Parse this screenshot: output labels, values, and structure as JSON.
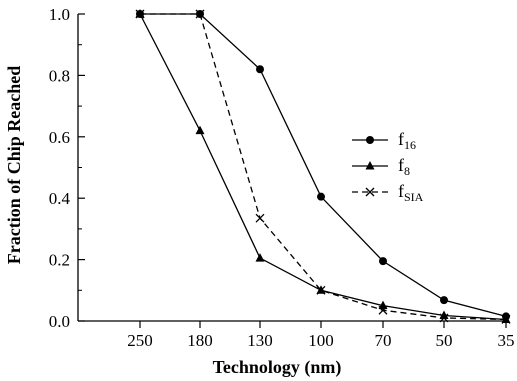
{
  "chart_data": {
    "type": "line",
    "xlabel": "Technology (nm)",
    "ylabel": "Fraction of Chip Reached",
    "categories": [
      "250",
      "180",
      "130",
      "100",
      "70",
      "50",
      "35"
    ],
    "ylim": [
      0,
      1.0
    ],
    "yticks": [
      "0.0",
      "0.2",
      "0.4",
      "0.6",
      "0.8",
      "1.0"
    ],
    "legend_position": "right",
    "grid": false,
    "series": [
      {
        "name": "f",
        "subscript": "16",
        "marker": "circle",
        "line": "solid",
        "color": "#000000",
        "values": [
          1.0,
          1.0,
          0.82,
          0.405,
          0.195,
          0.068,
          0.015
        ]
      },
      {
        "name": "f",
        "subscript": "8",
        "marker": "triangle",
        "line": "solid",
        "color": "#000000",
        "values": [
          1.0,
          0.62,
          0.205,
          0.1,
          0.05,
          0.018,
          0.005
        ]
      },
      {
        "name": "f",
        "subscript": "SIA",
        "marker": "x",
        "line": "dashed",
        "color": "#000000",
        "values": [
          1.0,
          1.0,
          0.335,
          0.1,
          0.035,
          0.01,
          0.005
        ]
      }
    ]
  }
}
